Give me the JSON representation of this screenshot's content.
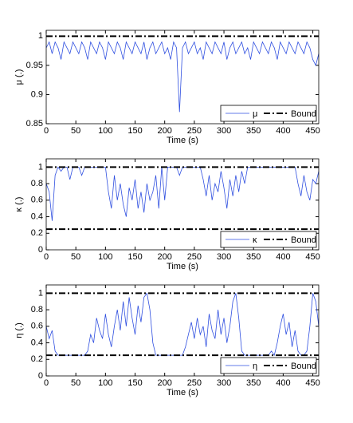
{
  "chart_data": [
    {
      "type": "line",
      "x_label": "Time (s)",
      "y_label": "μ (.)",
      "xlim": [
        0,
        460
      ],
      "xticks": [
        0,
        50,
        100,
        150,
        200,
        250,
        300,
        350,
        400,
        450
      ],
      "ylim": [
        0.85,
        1.01
      ],
      "yticks": [
        0.85,
        0.9,
        0.95,
        1
      ],
      "grid": false,
      "legend": "lower right",
      "x": [
        0,
        5,
        10,
        15,
        20,
        25,
        30,
        35,
        40,
        45,
        50,
        55,
        60,
        65,
        70,
        75,
        80,
        85,
        90,
        95,
        100,
        105,
        110,
        115,
        120,
        125,
        130,
        135,
        140,
        145,
        150,
        155,
        160,
        165,
        170,
        175,
        180,
        185,
        190,
        195,
        200,
        205,
        210,
        215,
        220,
        225,
        230,
        235,
        240,
        245,
        250,
        255,
        260,
        265,
        270,
        275,
        280,
        285,
        290,
        295,
        300,
        305,
        310,
        315,
        320,
        325,
        330,
        335,
        340,
        345,
        350,
        355,
        360,
        365,
        370,
        375,
        380,
        385,
        390,
        395,
        400,
        405,
        410,
        415,
        420,
        425,
        430,
        435,
        440,
        445,
        450,
        455,
        460
      ],
      "series": [
        {
          "name": "μ",
          "color": "#2f4fe0",
          "values": [
            0.98,
            0.99,
            0.97,
            0.99,
            0.98,
            0.96,
            0.99,
            0.98,
            0.97,
            0.99,
            0.98,
            0.97,
            0.99,
            0.98,
            0.96,
            0.99,
            0.98,
            0.97,
            0.99,
            0.98,
            0.96,
            0.99,
            0.98,
            0.97,
            0.99,
            0.98,
            0.96,
            0.99,
            0.98,
            0.97,
            0.99,
            0.98,
            0.97,
            0.99,
            0.96,
            0.98,
            0.99,
            0.97,
            0.98,
            0.99,
            0.97,
            0.98,
            0.96,
            0.99,
            0.98,
            0.87,
            0.98,
            0.99,
            0.97,
            0.98,
            0.99,
            0.97,
            0.98,
            0.96,
            0.99,
            0.98,
            0.97,
            0.99,
            0.98,
            0.97,
            0.99,
            0.96,
            0.98,
            0.99,
            0.97,
            0.98,
            0.99,
            0.97,
            0.98,
            0.96,
            0.99,
            0.98,
            0.97,
            0.99,
            0.98,
            0.97,
            0.99,
            0.98,
            0.96,
            0.99,
            0.98,
            0.97,
            0.99,
            0.98,
            0.97,
            0.99,
            0.98,
            0.97,
            0.99,
            0.98,
            0.96,
            0.95,
            0.97
          ]
        },
        {
          "name": "Bound",
          "color": "#000000",
          "hlines": [
            1
          ]
        }
      ]
    },
    {
      "type": "line",
      "x_label": "Time (s)",
      "y_label": "κ (.)",
      "xlim": [
        0,
        460
      ],
      "xticks": [
        0,
        50,
        100,
        150,
        200,
        250,
        300,
        350,
        400,
        450
      ],
      "ylim": [
        0,
        1.1
      ],
      "yticks": [
        0,
        0.2,
        0.4,
        0.6,
        0.8,
        1
      ],
      "grid": false,
      "legend": "lower right",
      "x": [
        0,
        5,
        10,
        15,
        20,
        25,
        30,
        35,
        40,
        45,
        50,
        55,
        60,
        65,
        70,
        75,
        80,
        85,
        90,
        95,
        100,
        105,
        110,
        115,
        120,
        125,
        130,
        135,
        140,
        145,
        150,
        155,
        160,
        165,
        170,
        175,
        180,
        185,
        190,
        195,
        200,
        205,
        210,
        215,
        220,
        225,
        230,
        235,
        240,
        245,
        250,
        255,
        260,
        265,
        270,
        275,
        280,
        285,
        290,
        295,
        300,
        305,
        310,
        315,
        320,
        325,
        330,
        335,
        340,
        345,
        350,
        355,
        360,
        365,
        370,
        375,
        380,
        385,
        390,
        395,
        400,
        405,
        410,
        415,
        420,
        425,
        430,
        435,
        440,
        445,
        450,
        455,
        460
      ],
      "series": [
        {
          "name": "κ",
          "color": "#2f4fe0",
          "values": [
            0.8,
            0.7,
            0.35,
            0.9,
            1,
            0.95,
            1,
            1,
            0.85,
            1,
            1,
            1,
            0.9,
            1,
            1,
            1,
            1,
            1,
            1,
            1,
            1,
            0.7,
            0.5,
            0.9,
            0.6,
            0.8,
            0.55,
            0.4,
            0.75,
            0.6,
            0.85,
            0.5,
            0.7,
            0.45,
            0.8,
            0.6,
            0.7,
            0.9,
            0.5,
            1,
            0.6,
            1,
            1,
            1,
            1,
            0.9,
            1,
            1,
            1,
            1,
            1,
            1,
            1,
            0.85,
            0.65,
            0.9,
            0.6,
            0.8,
            0.7,
            0.95,
            0.75,
            0.5,
            0.85,
            0.65,
            0.9,
            0.7,
            0.95,
            0.8,
            1,
            1,
            1,
            1,
            1,
            1,
            1,
            1,
            1,
            1,
            1,
            1,
            1,
            1,
            1,
            1,
            1,
            0.8,
            0.65,
            0.9,
            0.7,
            0.6,
            0.85,
            0.8,
            0.95
          ]
        },
        {
          "name": "Bound",
          "color": "#000000",
          "hlines": [
            0.25,
            1
          ]
        }
      ]
    },
    {
      "type": "line",
      "x_label": "Time (s)",
      "y_label": "η (.)",
      "xlim": [
        0,
        460
      ],
      "xticks": [
        0,
        50,
        100,
        150,
        200,
        250,
        300,
        350,
        400,
        450
      ],
      "ylim": [
        0,
        1.1
      ],
      "yticks": [
        0,
        0.2,
        0.4,
        0.6,
        0.8,
        1
      ],
      "grid": false,
      "legend": "lower right",
      "x": [
        0,
        5,
        10,
        15,
        20,
        25,
        30,
        35,
        40,
        45,
        50,
        55,
        60,
        65,
        70,
        75,
        80,
        85,
        90,
        95,
        100,
        105,
        110,
        115,
        120,
        125,
        130,
        135,
        140,
        145,
        150,
        155,
        160,
        165,
        170,
        175,
        180,
        185,
        190,
        195,
        200,
        205,
        210,
        215,
        220,
        225,
        230,
        235,
        240,
        245,
        250,
        255,
        260,
        265,
        270,
        275,
        280,
        285,
        290,
        295,
        300,
        305,
        310,
        315,
        320,
        325,
        330,
        335,
        340,
        345,
        350,
        355,
        360,
        365,
        370,
        375,
        380,
        385,
        390,
        395,
        400,
        405,
        410,
        415,
        420,
        425,
        430,
        435,
        440,
        445,
        450,
        455,
        460
      ],
      "series": [
        {
          "name": "η",
          "color": "#2f4fe0",
          "values": [
            0.6,
            0.45,
            0.55,
            0.3,
            0.25,
            0.25,
            0.25,
            0.25,
            0.25,
            0.25,
            0.25,
            0.25,
            0.25,
            0.25,
            0.3,
            0.5,
            0.4,
            0.7,
            0.55,
            0.45,
            0.75,
            0.5,
            0.35,
            0.6,
            0.8,
            0.55,
            0.9,
            0.6,
            0.95,
            0.7,
            0.5,
            0.85,
            0.65,
            0.95,
            1,
            0.8,
            0.4,
            0.25,
            0.25,
            0.25,
            0.25,
            0.25,
            0.25,
            0.25,
            0.25,
            0.25,
            0.25,
            0.35,
            0.5,
            0.65,
            0.45,
            0.7,
            0.5,
            0.6,
            0.35,
            0.75,
            0.55,
            0.45,
            0.8,
            0.5,
            0.7,
            0.4,
            0.6,
            0.9,
            1,
            0.7,
            0.3,
            0.25,
            0.25,
            0.25,
            0.25,
            0.25,
            0.25,
            0.25,
            0.25,
            0.25,
            0.3,
            0.25,
            0.4,
            0.6,
            0.75,
            0.5,
            0.65,
            0.35,
            0.55,
            0.3,
            0.25,
            0.25,
            0.3,
            0.6,
            1,
            0.9,
            0.6
          ]
        },
        {
          "name": "Bound",
          "color": "#000000",
          "hlines": [
            0.25,
            1
          ]
        }
      ]
    }
  ]
}
